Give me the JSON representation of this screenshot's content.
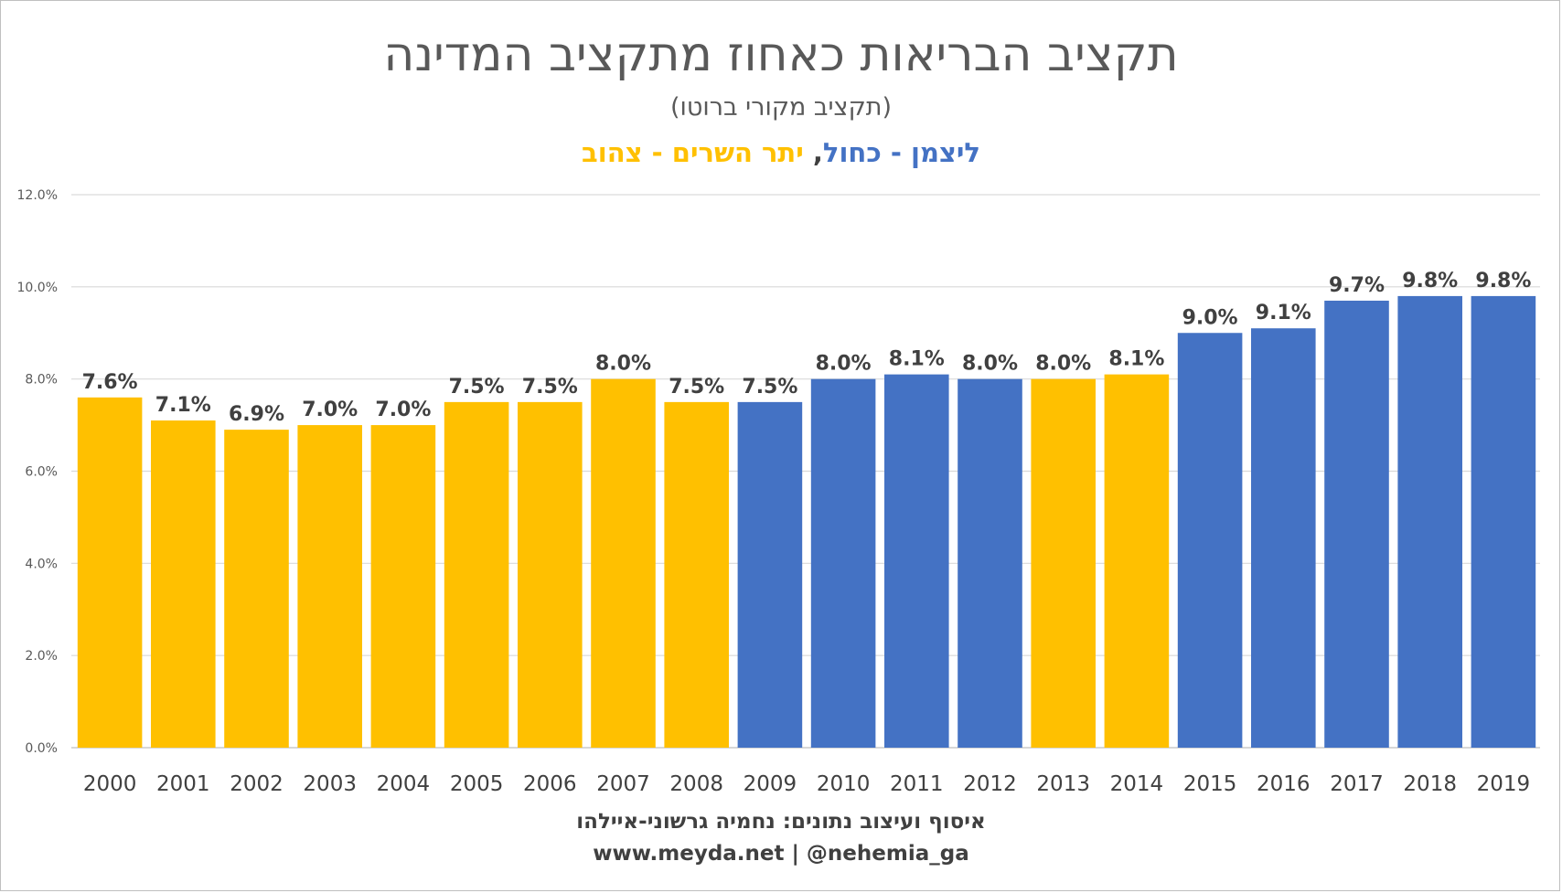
{
  "chart_data": {
    "type": "bar",
    "title": "תקציב הבריאות כאחוז מתקציב המדינה",
    "subtitle": "(תקציב מקורי ברוטו)",
    "legend": {
      "blue_text": "ליצמן - כחול",
      "separator": ", ",
      "yellow_text": "יתר השרים - צהוב",
      "blue_color": "#4472c4",
      "yellow_color": "#ffc000"
    },
    "categories": [
      "2000",
      "2001",
      "2002",
      "2003",
      "2004",
      "2005",
      "2006",
      "2007",
      "2008",
      "2009",
      "2010",
      "2011",
      "2012",
      "2013",
      "2014",
      "2015",
      "2016",
      "2017",
      "2018",
      "2019"
    ],
    "values": [
      7.6,
      7.1,
      6.9,
      7.0,
      7.0,
      7.5,
      7.5,
      8.0,
      7.5,
      7.5,
      8.0,
      8.1,
      8.0,
      8.0,
      8.1,
      9.0,
      9.1,
      9.7,
      9.8,
      9.8
    ],
    "labels": [
      "7.6%",
      "7.1%",
      "6.9%",
      "7.0%",
      "7.0%",
      "7.5%",
      "7.5%",
      "8.0%",
      "7.5%",
      "7.5%",
      "8.0%",
      "8.1%",
      "8.0%",
      "8.0%",
      "8.1%",
      "9.0%",
      "9.1%",
      "9.7%",
      "9.8%",
      "9.8%"
    ],
    "colors": [
      "yellow",
      "yellow",
      "yellow",
      "yellow",
      "yellow",
      "yellow",
      "yellow",
      "yellow",
      "yellow",
      "blue",
      "blue",
      "blue",
      "blue",
      "yellow",
      "yellow",
      "blue",
      "blue",
      "blue",
      "blue",
      "blue"
    ],
    "ylim": [
      0,
      12
    ],
    "yticks": [
      0,
      2,
      4,
      6,
      8,
      10,
      12
    ],
    "ytick_labels": [
      "0.0%",
      "2.0%",
      "4.0%",
      "6.0%",
      "8.0%",
      "10.0%",
      "12.0%"
    ],
    "grid": true,
    "xlabel": "",
    "ylabel": ""
  },
  "credits": {
    "line1": "איסוף ועיצוב נתונים: נחמיה גרשוני-איילהו",
    "line2": "www.meyda.net | @nehemia_ga"
  }
}
